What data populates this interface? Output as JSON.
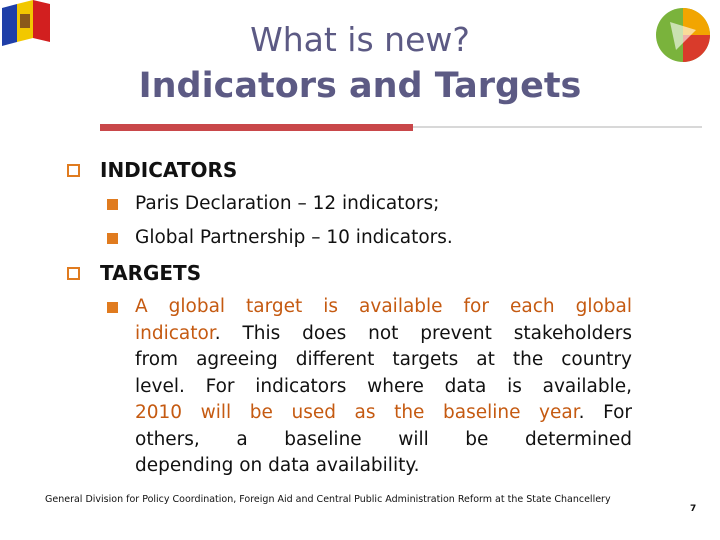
{
  "header": {
    "title": [
      "What is new?",
      "Indicators and Targets"
    ]
  },
  "body": {
    "sections": [
      {
        "heading": "INDICATORS",
        "items": [
          {
            "lines": [
              [
                {
                  "text": "Paris Declaration – 12 indicators;"
                }
              ]
            ]
          },
          {
            "lines": [
              [
                {
                  "text": "Global Partnership – 10 indicators."
                }
              ]
            ]
          }
        ]
      },
      {
        "heading": "TARGETS",
        "items": [
          {
            "lines": [
              [
                {
                  "text": "A global target is available for each global",
                  "color": "#c55a11"
                }
              ],
              [
                {
                  "text": "indicator",
                  "color": "#c55a11"
                },
                {
                  "text": ". This does not prevent stakeholders"
                }
              ],
              [
                {
                  "text": "from agreeing different targets at the country"
                }
              ],
              [
                {
                  "text": "level. For indicators where data is available,"
                }
              ],
              [
                {
                  "text": "2010 will be used as the baseline year",
                  "color": "#c55a11"
                },
                {
                  "text": ". For"
                }
              ],
              [
                {
                  "text": "others, a baseline will be determined"
                }
              ],
              [
                {
                  "text": "depending on data availability."
                }
              ]
            ]
          }
        ]
      }
    ]
  },
  "footer": {
    "text": "General Division for Policy Coordination, Foreign Aid and Central Public Administration Reform at the State Chancellery",
    "page": "7"
  }
}
